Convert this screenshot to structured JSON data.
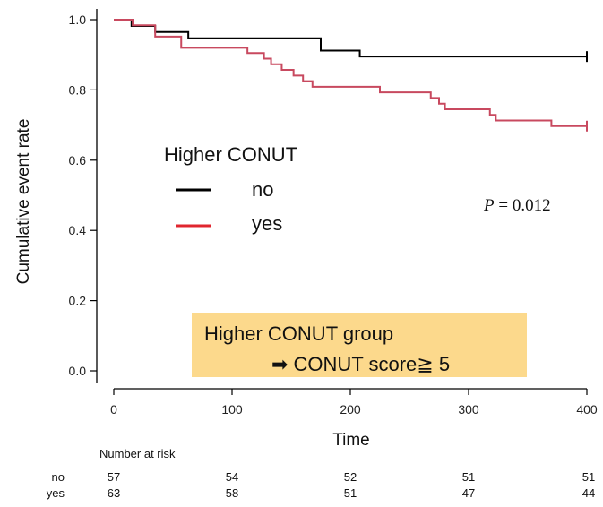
{
  "chart_data": {
    "type": "line",
    "title": "",
    "xlabel": "Time",
    "ylabel": "Cumulative event rate",
    "xlim": [
      0,
      400
    ],
    "ylim": [
      0,
      1.0
    ],
    "x_ticks": [
      "0",
      "100",
      "200",
      "300",
      "400"
    ],
    "y_ticks": [
      "0.0",
      "0.2",
      "0.4",
      "0.6",
      "0.8",
      "1.0"
    ],
    "grid": false,
    "legend": {
      "title": "Higher CONUT",
      "position": "middle-left",
      "entries": [
        "no",
        "yes"
      ]
    },
    "p_value": {
      "label": "P",
      "text": " = 0.012"
    },
    "note": {
      "line1": "Higher CONUT group",
      "line2": "➡ CONUT score≧ 5"
    },
    "series": [
      {
        "name": "no",
        "color": "#000000",
        "steps": [
          [
            0,
            1.0
          ],
          [
            15,
            0.982
          ],
          [
            35,
            0.965
          ],
          [
            63,
            0.947
          ],
          [
            150,
            0.947
          ],
          [
            175,
            0.912
          ],
          [
            208,
            0.895
          ],
          [
            400,
            0.895
          ]
        ],
        "censor": [
          [
            400,
            0.895
          ]
        ]
      },
      {
        "name": "yes",
        "color": "#c8495f",
        "steps": [
          [
            0,
            1.0
          ],
          [
            16,
            0.984
          ],
          [
            35,
            0.952
          ],
          [
            57,
            0.92
          ],
          [
            113,
            0.905
          ],
          [
            127,
            0.889
          ],
          [
            133,
            0.873
          ],
          [
            142,
            0.857
          ],
          [
            152,
            0.841
          ],
          [
            160,
            0.825
          ],
          [
            168,
            0.809
          ],
          [
            225,
            0.793
          ],
          [
            268,
            0.777
          ],
          [
            275,
            0.761
          ],
          [
            280,
            0.745
          ],
          [
            318,
            0.729
          ],
          [
            323,
            0.713
          ],
          [
            370,
            0.697
          ],
          [
            400,
            0.697
          ]
        ],
        "censor": [
          [
            400,
            0.697
          ]
        ]
      }
    ],
    "risk_table": {
      "title": "Number at risk",
      "rows": [
        {
          "label": "no",
          "values": [
            "57",
            "54",
            "52",
            "51",
            "51"
          ]
        },
        {
          "label": "yes",
          "values": [
            "63",
            "58",
            "51",
            "47",
            "44"
          ]
        }
      ]
    }
  }
}
